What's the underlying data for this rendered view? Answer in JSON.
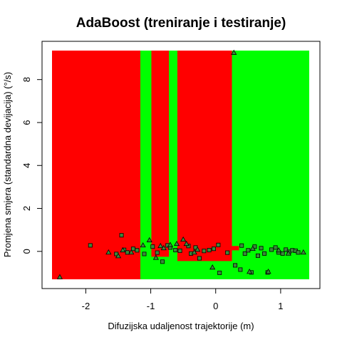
{
  "chart_data": {
    "type": "scatter",
    "title": "AdaBoost (treniranje i testiranje)",
    "xlabel": "Difuzijska udaljenost trajektorije (m)",
    "ylabel": "Promjena smjera (standardna devijacija) (°/s)",
    "xlim": [
      -2.52,
      1.44
    ],
    "ylim": [
      -1.3,
      9.35
    ],
    "x_ticks": [
      -2,
      -1,
      0,
      1
    ],
    "y_ticks": [
      0,
      2,
      4,
      6,
      8
    ],
    "grid": false,
    "colors": {
      "class_a_region": "#ff0000",
      "class_b_region": "#00ff00",
      "marker_fill": "#3a8a3a",
      "marker_edge": "#000000"
    },
    "decision_regions": [
      {
        "class": "red",
        "x": [
          -2.52,
          -1.16
        ],
        "y": [
          -1.3,
          9.35
        ]
      },
      {
        "class": "green",
        "x": [
          -1.16,
          1.44
        ],
        "y": [
          -1.3,
          9.35
        ]
      },
      {
        "class": "red",
        "x": [
          -0.99,
          -0.72
        ],
        "y": [
          -0.25,
          9.35
        ]
      },
      {
        "class": "red",
        "x": [
          -0.59,
          0.25
        ],
        "y": [
          -0.45,
          9.35
        ]
      },
      {
        "class": "red",
        "x": [
          0.25,
          0.36
        ],
        "y": [
          0.05,
          0.25
        ]
      }
    ],
    "series": [
      {
        "marker": "square",
        "points": [
          [
            -1.93,
            0.28
          ],
          [
            -1.45,
            0.75
          ],
          [
            -1.53,
            -0.12
          ],
          [
            -1.41,
            0.07
          ],
          [
            -1.36,
            -0.05
          ],
          [
            -1.27,
            0.12
          ],
          [
            -1.21,
            0.05
          ],
          [
            -1.1,
            -0.12
          ],
          [
            -0.97,
            0.22
          ],
          [
            -0.9,
            -0.06
          ],
          [
            -0.82,
            -0.48
          ],
          [
            -0.74,
            0.28
          ],
          [
            -0.7,
            0.18
          ],
          [
            -0.62,
            0.06
          ],
          [
            -0.55,
            0.03
          ],
          [
            -0.42,
            0.25
          ],
          [
            -0.38,
            -0.1
          ],
          [
            -0.31,
            0.18
          ],
          [
            -0.25,
            -0.32
          ],
          [
            -0.18,
            0.02
          ],
          [
            -0.1,
            0.06
          ],
          [
            -0.03,
            0.12
          ],
          [
            0.04,
            0.3
          ],
          [
            0.06,
            -1.0
          ],
          [
            0.18,
            -0.06
          ],
          [
            0.3,
            -0.65
          ],
          [
            0.38,
            -0.85
          ],
          [
            0.4,
            0.27
          ],
          [
            0.45,
            -0.1
          ],
          [
            0.5,
            0.05
          ],
          [
            0.55,
            -0.98
          ],
          [
            0.6,
            0.22
          ],
          [
            0.65,
            -0.2
          ],
          [
            0.7,
            0.15
          ],
          [
            0.75,
            -0.1
          ],
          [
            0.8,
            -0.98
          ],
          [
            0.86,
            0.08
          ],
          [
            0.92,
            0.18
          ],
          [
            0.97,
            -0.05
          ],
          [
            1.03,
            -0.1
          ],
          [
            1.08,
            0.08
          ],
          [
            1.13,
            -0.02
          ],
          [
            1.18,
            0.05
          ],
          [
            1.23,
            0.03
          ],
          [
            1.27,
            -0.05
          ]
        ]
      },
      {
        "marker": "triangle",
        "points": [
          [
            -2.4,
            -1.2
          ],
          [
            -1.65,
            -0.05
          ],
          [
            -1.5,
            -0.22
          ],
          [
            -1.43,
            0.05
          ],
          [
            -1.3,
            -0.05
          ],
          [
            -1.12,
            0.28
          ],
          [
            -1.02,
            0.52
          ],
          [
            -0.92,
            -0.3
          ],
          [
            -0.85,
            0.25
          ],
          [
            -0.8,
            0.15
          ],
          [
            -0.7,
            0.3
          ],
          [
            -0.6,
            0.35
          ],
          [
            -0.5,
            0.55
          ],
          [
            -0.45,
            0.35
          ],
          [
            -0.33,
            -0.05
          ],
          [
            -0.28,
            0.08
          ],
          [
            -0.05,
            -0.75
          ],
          [
            0.28,
            9.25
          ],
          [
            0.52,
            -0.95
          ],
          [
            0.57,
            0.12
          ],
          [
            0.81,
            -0.95
          ],
          [
            0.97,
            0.05
          ],
          [
            1.12,
            -0.1
          ],
          [
            1.35,
            -0.05
          ]
        ]
      }
    ]
  }
}
